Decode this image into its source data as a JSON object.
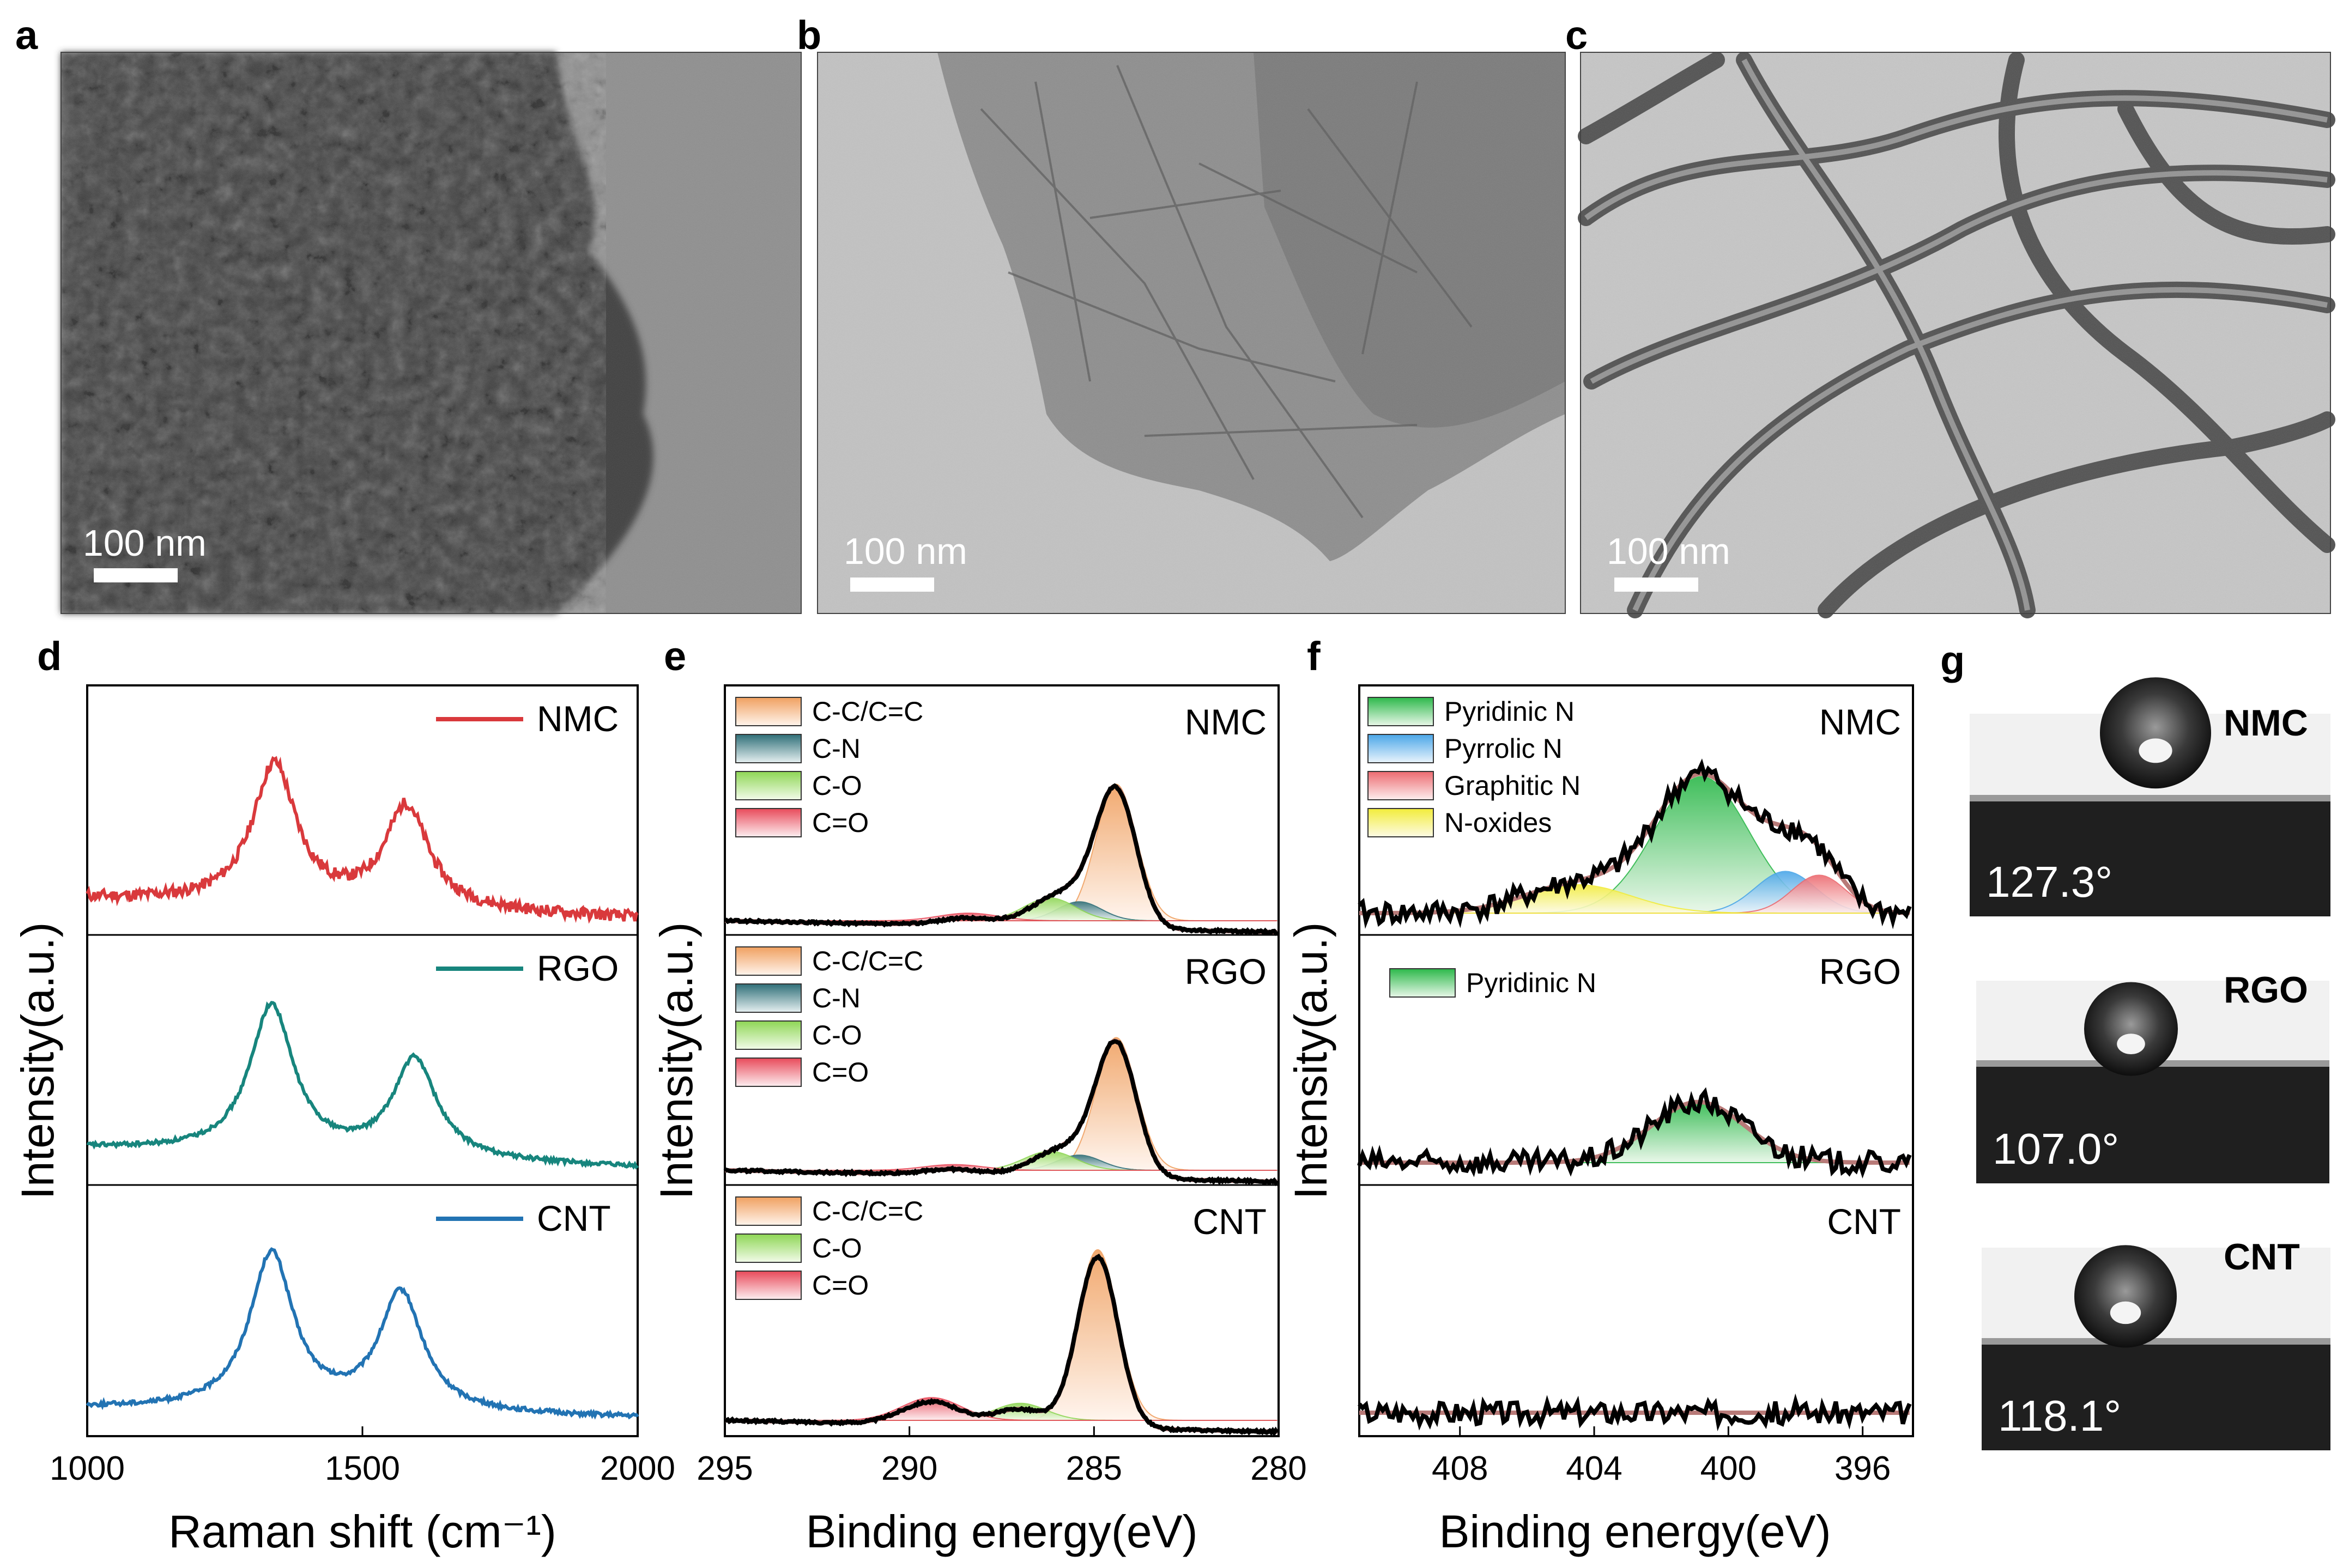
{
  "panels": {
    "a": {
      "label": "a",
      "scale_bar": "100 nm"
    },
    "b": {
      "label": "b",
      "scale_bar": "100 nm"
    },
    "c": {
      "label": "c",
      "scale_bar": "100 nm"
    },
    "d": {
      "label": "d"
    },
    "e": {
      "label": "e"
    },
    "f": {
      "label": "f"
    },
    "g": {
      "label": "g"
    }
  },
  "colors": {
    "NMC": "#d9393c",
    "RGO": "#17857d",
    "CNT": "#2273b3",
    "C-C/C=C": "#f0a060",
    "C-N": "#2f6f78",
    "C-O": "#8ed655",
    "C=O": "#e84a5a",
    "Pyridinic N": "#2cb84a",
    "Pyrrolic N": "#4aa6e8",
    "Graphitic N": "#ec6a70",
    "N-oxides": "#f2ec3a",
    "envelope": "#b87a78",
    "data": "#000000"
  },
  "chart_data": [
    {
      "panel": "d",
      "type": "line",
      "xlabel": "Raman shift (cm⁻¹)",
      "ylabel": "Intensity(a.u.)",
      "xlim": [
        1000,
        2000
      ],
      "xticks": [
        "1000",
        "1500",
        "2000"
      ],
      "series": [
        {
          "name": "NMC",
          "peaks": [
            {
              "x": 1340,
              "height": 0.85
            },
            {
              "x": 1580,
              "height": 0.62
            }
          ],
          "baseline": 0.2
        },
        {
          "name": "RGO",
          "peaks": [
            {
              "x": 1335,
              "height": 0.9
            },
            {
              "x": 1595,
              "height": 0.6
            }
          ],
          "baseline": 0.2
        },
        {
          "name": "CNT",
          "peaks": [
            {
              "x": 1335,
              "height": 0.95
            },
            {
              "x": 1570,
              "height": 0.72
            }
          ],
          "baseline": 0.1
        }
      ]
    },
    {
      "panel": "e",
      "type": "area",
      "xlabel": "Binding energy(eV)",
      "ylabel": "Intensity(a.u.)",
      "xlim": [
        295,
        280
      ],
      "xticks": [
        "295",
        "290",
        "285",
        "280"
      ],
      "subplots": [
        {
          "name": "NMC",
          "legend": [
            "C-C/C=C",
            "C-N",
            "C-O",
            "C=O"
          ],
          "components": [
            {
              "name": "C-C/C=C",
              "center": 284.4,
              "height": 0.72
            },
            {
              "name": "C-N",
              "center": 285.4,
              "height": 0.1
            },
            {
              "name": "C-O",
              "center": 286.2,
              "height": 0.12
            },
            {
              "name": "C=O",
              "center": 288.4,
              "height": 0.04
            }
          ],
          "envelope_peak": 284.6
        },
        {
          "name": "RGO",
          "legend": [
            "C-C/C=C",
            "C-N",
            "C-O",
            "C=O"
          ],
          "components": [
            {
              "name": "C-C/C=C",
              "center": 284.4,
              "height": 0.7
            },
            {
              "name": "C-N",
              "center": 285.4,
              "height": 0.08
            },
            {
              "name": "C-O",
              "center": 286.2,
              "height": 0.1
            },
            {
              "name": "C=O",
              "center": 288.8,
              "height": 0.03
            }
          ],
          "envelope_peak": 284.6
        },
        {
          "name": "CNT",
          "legend": [
            "C-C/C=C",
            "C-O",
            "C=O"
          ],
          "components": [
            {
              "name": "C-C/C=C",
              "center": 284.9,
              "height": 0.9
            },
            {
              "name": "C-O",
              "center": 287.0,
              "height": 0.09
            },
            {
              "name": "C=O",
              "center": 289.4,
              "height": 0.12
            }
          ],
          "envelope_peak": 284.9
        }
      ]
    },
    {
      "panel": "f",
      "type": "area",
      "xlabel": "Binding energy(eV)",
      "ylabel": "Intensity(a.u.)",
      "xlim": [
        411,
        394.5
      ],
      "xticks": [
        "408",
        "404",
        "400",
        "396"
      ],
      "subplots": [
        {
          "name": "NMC",
          "legend": [
            "Pyridinic N",
            "Pyrrolic N",
            "Graphitic N",
            "N-oxides"
          ],
          "components": [
            {
              "name": "Pyridinic N",
              "center": 400.8,
              "height": 0.72
            },
            {
              "name": "Pyrrolic N",
              "center": 398.3,
              "height": 0.22
            },
            {
              "name": "Graphitic N",
              "center": 397.3,
              "height": 0.2
            },
            {
              "name": "N-oxides",
              "center": 404.5,
              "height": 0.15
            }
          ]
        },
        {
          "name": "RGO",
          "legend": [
            "Pyridinic N"
          ],
          "components": [
            {
              "name": "Pyridinic N",
              "center": 400.9,
              "height": 0.32
            }
          ]
        },
        {
          "name": "CNT",
          "legend": [],
          "components": []
        }
      ]
    }
  ],
  "contact_angles": [
    {
      "name": "NMC",
      "angle": "127.3°"
    },
    {
      "name": "RGO",
      "angle": "107.0°"
    },
    {
      "name": "CNT",
      "angle": "118.1°"
    }
  ]
}
